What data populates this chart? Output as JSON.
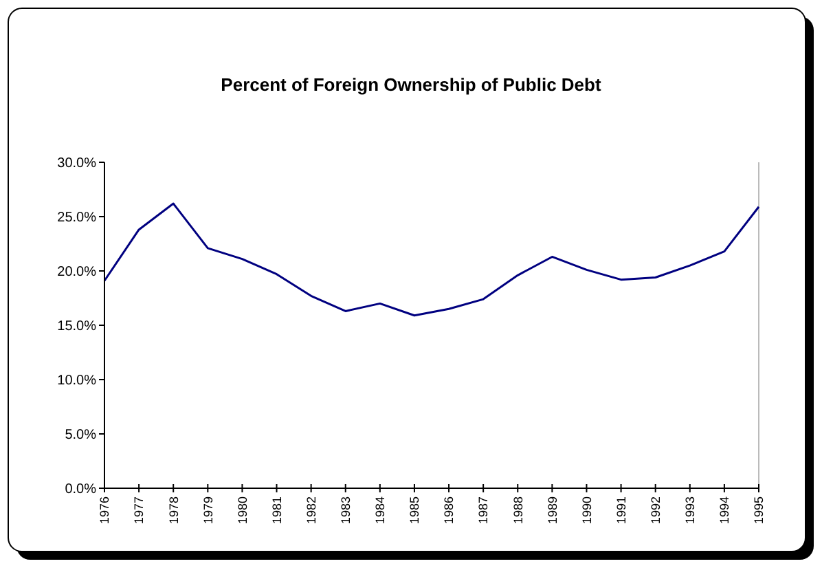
{
  "chart_data": {
    "type": "line",
    "title": "Percent of Foreign Ownership of Public Debt",
    "categories": [
      "1976",
      "1977",
      "1978",
      "1979",
      "1980",
      "1981",
      "1982",
      "1983",
      "1984",
      "1985",
      "1986",
      "1987",
      "1988",
      "1989",
      "1990",
      "1991",
      "1992",
      "1993",
      "1994",
      "1995"
    ],
    "series": [
      {
        "color": "#000080",
        "values": [
          19.1,
          23.8,
          26.2,
          22.1,
          21.1,
          19.7,
          17.7,
          16.3,
          17.0,
          15.9,
          16.5,
          17.4,
          19.6,
          21.3,
          20.1,
          19.2,
          19.4,
          20.5,
          21.8,
          25.9
        ]
      }
    ],
    "ylim": [
      0,
      30
    ],
    "yticks": [
      {
        "value": 0,
        "label": "0.0%"
      },
      {
        "value": 5,
        "label": "5.0%"
      },
      {
        "value": 10,
        "label": "10.0%"
      },
      {
        "value": 15,
        "label": "15.0%"
      },
      {
        "value": 20,
        "label": "20.0%"
      },
      {
        "value": 25,
        "label": "25.0%"
      },
      {
        "value": 30,
        "label": "30.0%"
      }
    ],
    "grid": false,
    "marker": "none",
    "line_style": "solid"
  }
}
